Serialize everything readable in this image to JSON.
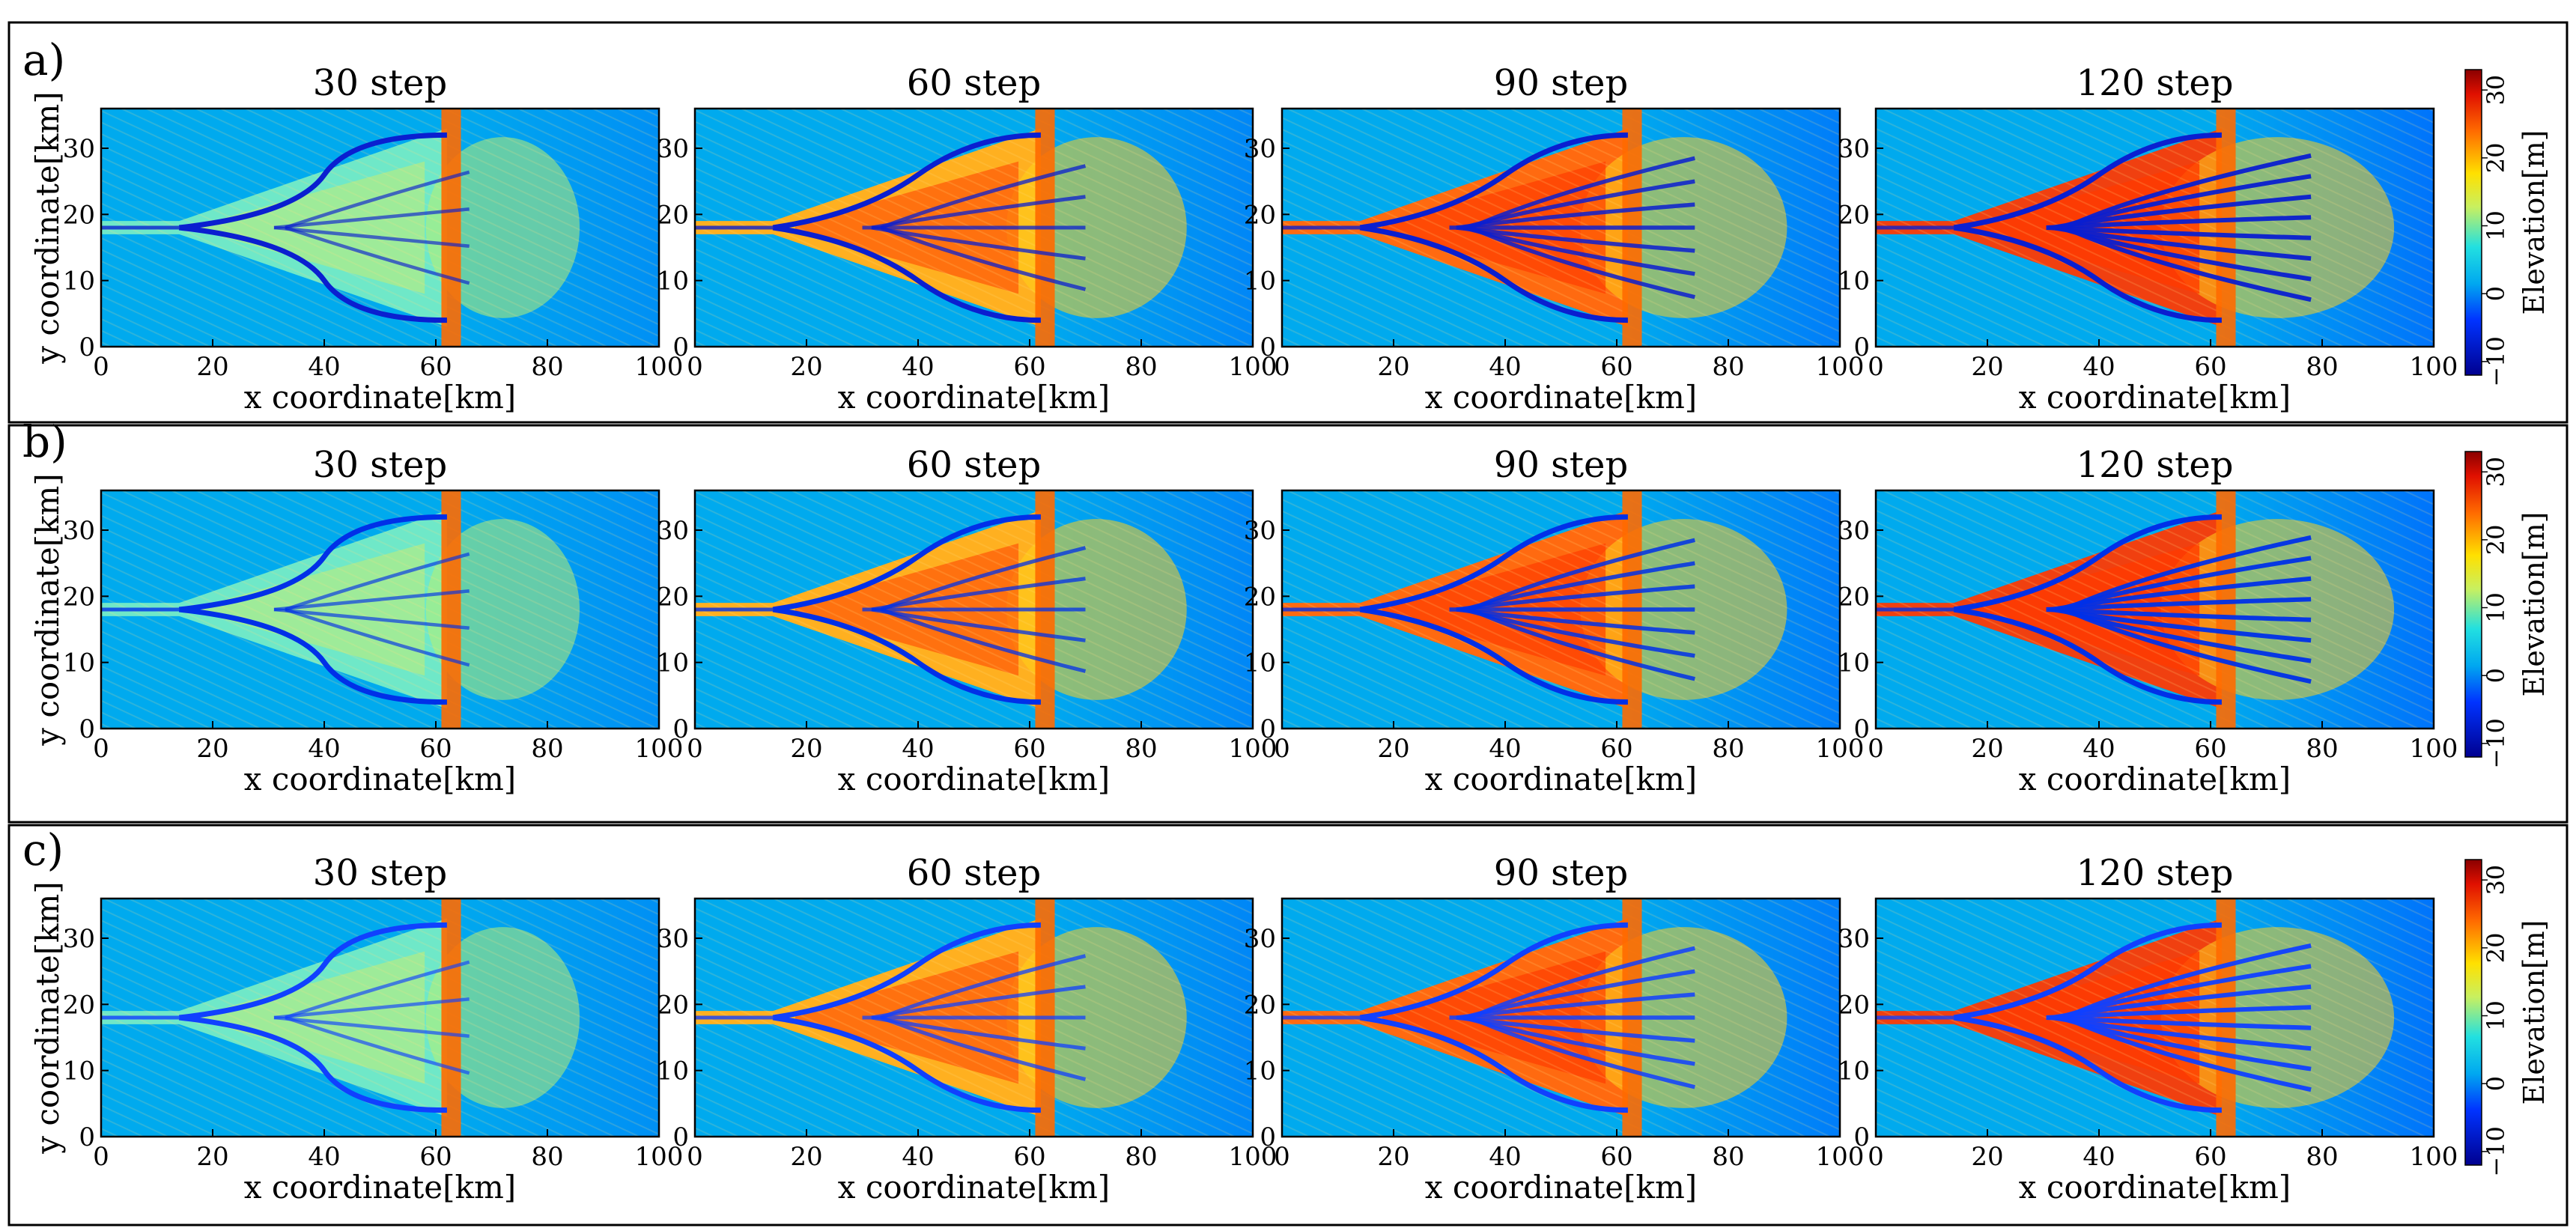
{
  "figure": {
    "rows": [
      {
        "label": "a)",
        "panel_titles": [
          "30  step",
          "60  step",
          "90  step",
          "120  step"
        ]
      },
      {
        "label": "b)",
        "panel_titles": [
          "30  step",
          "60  step",
          "90  step",
          "120  step"
        ]
      },
      {
        "label": "c)",
        "panel_titles": [
          "30  step",
          "60  step",
          "90  step",
          "120  step"
        ]
      }
    ],
    "xlabel": "x  coordinate[km]",
    "ylabel": "y  coordinate[km]",
    "xticks": [
      "0",
      "20",
      "40",
      "60",
      "80",
      "100"
    ],
    "yticks": [
      "0",
      "10",
      "20",
      "30"
    ],
    "colorbar": {
      "label": "Elevation[m]",
      "ticks": [
        "−10",
        "0",
        "10",
        "20",
        "30"
      ]
    }
  },
  "chart_data": [
    {
      "type": "heatmap",
      "row": "a)",
      "title": "30  step",
      "step": 30,
      "xlabel": "x  coordinate[km]",
      "ylabel": "y  coordinate[km]",
      "xlim": [
        0,
        100
      ],
      "ylim": [
        0,
        36
      ],
      "xticks": [
        0,
        20,
        40,
        60,
        80,
        100
      ],
      "yticks": [
        0,
        10,
        20,
        30
      ],
      "colorbar": {
        "label": "Elevation[m]",
        "range": [
          -12,
          33
        ],
        "ticks": [
          -10,
          0,
          10,
          20,
          30
        ]
      }
    },
    {
      "type": "heatmap",
      "row": "a)",
      "title": "60  step",
      "step": 60,
      "xlabel": "x  coordinate[km]",
      "ylabel": "y  coordinate[km]",
      "xlim": [
        0,
        100
      ],
      "ylim": [
        0,
        36
      ],
      "xticks": [
        0,
        20,
        40,
        60,
        80,
        100
      ],
      "yticks": [
        0,
        10,
        20,
        30
      ],
      "colorbar": {
        "label": "Elevation[m]",
        "range": [
          -12,
          33
        ],
        "ticks": [
          -10,
          0,
          10,
          20,
          30
        ]
      }
    },
    {
      "type": "heatmap",
      "row": "a)",
      "title": "90  step",
      "step": 90,
      "xlabel": "x  coordinate[km]",
      "ylabel": "y  coordinate[km]",
      "xlim": [
        0,
        100
      ],
      "ylim": [
        0,
        36
      ],
      "xticks": [
        0,
        20,
        40,
        60,
        80,
        100
      ],
      "yticks": [
        0,
        10,
        20,
        30
      ],
      "colorbar": {
        "label": "Elevation[m]",
        "range": [
          -12,
          33
        ],
        "ticks": [
          -10,
          0,
          10,
          20,
          30
        ]
      }
    },
    {
      "type": "heatmap",
      "row": "a)",
      "title": "120  step",
      "step": 120,
      "xlabel": "x  coordinate[km]",
      "ylabel": "y  coordinate[km]",
      "xlim": [
        0,
        100
      ],
      "ylim": [
        0,
        36
      ],
      "xticks": [
        0,
        20,
        40,
        60,
        80,
        100
      ],
      "yticks": [
        0,
        10,
        20,
        30
      ],
      "colorbar": {
        "label": "Elevation[m]",
        "range": [
          -12,
          33
        ],
        "ticks": [
          -10,
          0,
          10,
          20,
          30
        ]
      }
    },
    {
      "type": "heatmap",
      "row": "b)",
      "title": "30  step",
      "step": 30,
      "xlabel": "x  coordinate[km]",
      "ylabel": "y  coordinate[km]",
      "xlim": [
        0,
        100
      ],
      "ylim": [
        0,
        36
      ],
      "xticks": [
        0,
        20,
        40,
        60,
        80,
        100
      ],
      "yticks": [
        0,
        10,
        20,
        30
      ],
      "colorbar": {
        "label": "Elevation[m]",
        "range": [
          -12,
          33
        ],
        "ticks": [
          -10,
          0,
          10,
          20,
          30
        ]
      }
    },
    {
      "type": "heatmap",
      "row": "b)",
      "title": "60  step",
      "step": 60,
      "xlabel": "x  coordinate[km]",
      "ylabel": "y  coordinate[km]",
      "xlim": [
        0,
        100
      ],
      "ylim": [
        0,
        36
      ],
      "xticks": [
        0,
        20,
        40,
        60,
        80,
        100
      ],
      "yticks": [
        0,
        10,
        20,
        30
      ],
      "colorbar": {
        "label": "Elevation[m]",
        "range": [
          -12,
          33
        ],
        "ticks": [
          -10,
          0,
          10,
          20,
          30
        ]
      }
    },
    {
      "type": "heatmap",
      "row": "b)",
      "title": "90  step",
      "step": 90,
      "xlabel": "x  coordinate[km]",
      "ylabel": "y  coordinate[km]",
      "xlim": [
        0,
        100
      ],
      "ylim": [
        0,
        36
      ],
      "xticks": [
        0,
        20,
        40,
        60,
        80,
        100
      ],
      "yticks": [
        0,
        10,
        20,
        30
      ],
      "colorbar": {
        "label": "Elevation[m]",
        "range": [
          -12,
          33
        ],
        "ticks": [
          -10,
          0,
          10,
          20,
          30
        ]
      }
    },
    {
      "type": "heatmap",
      "row": "b)",
      "title": "120  step",
      "step": 120,
      "xlabel": "x  coordinate[km]",
      "ylabel": "y  coordinate[km]",
      "xlim": [
        0,
        100
      ],
      "ylim": [
        0,
        36
      ],
      "xticks": [
        0,
        20,
        40,
        60,
        80,
        100
      ],
      "yticks": [
        0,
        10,
        20,
        30
      ],
      "colorbar": {
        "label": "Elevation[m]",
        "range": [
          -12,
          33
        ],
        "ticks": [
          -10,
          0,
          10,
          20,
          30
        ]
      }
    },
    {
      "type": "heatmap",
      "row": "c)",
      "title": "30  step",
      "step": 30,
      "xlabel": "x  coordinate[km]",
      "ylabel": "y  coordinate[km]",
      "xlim": [
        0,
        100
      ],
      "ylim": [
        0,
        36
      ],
      "xticks": [
        0,
        20,
        40,
        60,
        80,
        100
      ],
      "yticks": [
        0,
        10,
        20,
        30
      ],
      "colorbar": {
        "label": "Elevation[m]",
        "range": [
          -12,
          33
        ],
        "ticks": [
          -10,
          0,
          10,
          20,
          30
        ]
      }
    },
    {
      "type": "heatmap",
      "row": "c)",
      "title": "60  step",
      "step": 60,
      "xlabel": "x  coordinate[km]",
      "ylabel": "y  coordinate[km]",
      "xlim": [
        0,
        100
      ],
      "ylim": [
        0,
        36
      ],
      "xticks": [
        0,
        20,
        40,
        60,
        80,
        100
      ],
      "yticks": [
        0,
        10,
        20,
        30
      ],
      "colorbar": {
        "label": "Elevation[m]",
        "range": [
          -12,
          33
        ],
        "ticks": [
          -10,
          0,
          10,
          20,
          30
        ]
      }
    },
    {
      "type": "heatmap",
      "row": "c)",
      "title": "90  step",
      "step": 90,
      "xlabel": "x  coordinate[km]",
      "ylabel": "y  coordinate[km]",
      "xlim": [
        0,
        100
      ],
      "ylim": [
        0,
        36
      ],
      "xticks": [
        0,
        20,
        40,
        60,
        80,
        100
      ],
      "yticks": [
        0,
        10,
        20,
        30
      ],
      "colorbar": {
        "label": "Elevation[m]",
        "range": [
          -12,
          33
        ],
        "ticks": [
          -10,
          0,
          10,
          20,
          30
        ]
      }
    },
    {
      "type": "heatmap",
      "row": "c)",
      "title": "120  step",
      "step": 120,
      "xlabel": "x  coordinate[km]",
      "ylabel": "y  coordinate[km]",
      "xlim": [
        0,
        100
      ],
      "ylim": [
        0,
        36
      ],
      "xticks": [
        0,
        20,
        40,
        60,
        80,
        100
      ],
      "yticks": [
        0,
        10,
        20,
        30
      ],
      "colorbar": {
        "label": "Elevation[m]",
        "range": [
          -12,
          33
        ],
        "ticks": [
          -10,
          0,
          10,
          20,
          30
        ]
      }
    }
  ]
}
